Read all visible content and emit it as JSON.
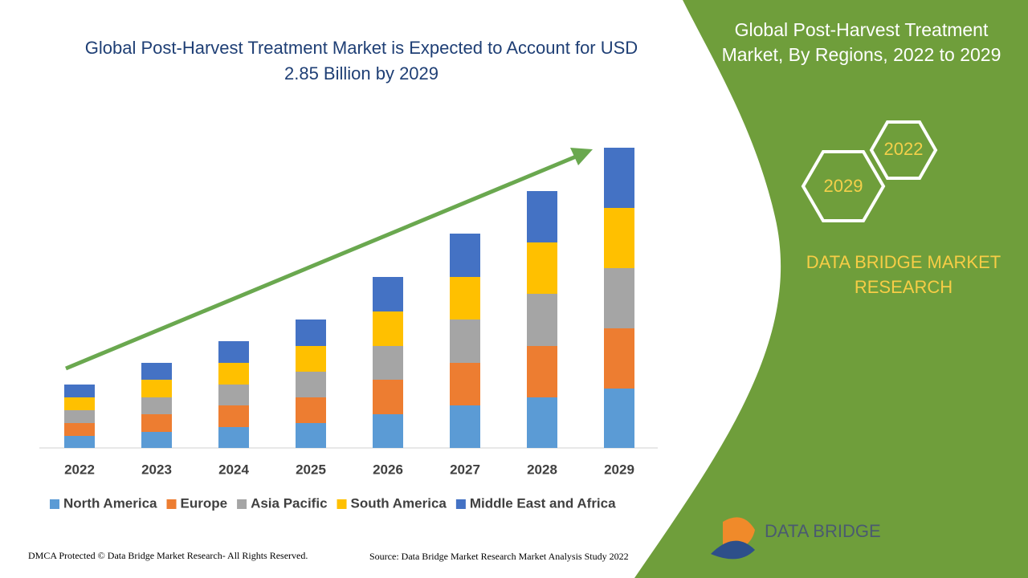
{
  "chart_data": {
    "type": "stacked_bar",
    "title": "Global Post-Harvest Treatment Market is Expected to Account for USD 2.85 Billion by 2029",
    "categories": [
      "2022",
      "2023",
      "2024",
      "2025",
      "2026",
      "2027",
      "2028",
      "2029"
    ],
    "series": [
      {
        "name": "North America",
        "color": "#5b9bd5",
        "values": [
          15,
          20,
          26,
          31,
          42,
          53,
          63,
          74
        ]
      },
      {
        "name": "Europe",
        "color": "#ed7d31",
        "values": [
          16,
          22,
          27,
          32,
          43,
          53,
          64,
          75
        ]
      },
      {
        "name": "Asia Pacific",
        "color": "#a5a5a5",
        "values": [
          16,
          21,
          26,
          32,
          42,
          54,
          65,
          75
        ]
      },
      {
        "name": "South America",
        "color": "#ffc000",
        "values": [
          16,
          22,
          27,
          32,
          43,
          53,
          64,
          75
        ]
      },
      {
        "name": "Middle East and Africa",
        "color": "#4472c4",
        "values": [
          16,
          21,
          27,
          33,
          43,
          54,
          64,
          75
        ]
      }
    ],
    "ylim": [
      0,
      374
    ]
  },
  "panel": {
    "title": "Global Post-Harvest Treatment Market, By Regions, 2022 to 2029",
    "hex_years": [
      "2022",
      "2029"
    ],
    "brand": "DATA BRIDGE MARKET RESEARCH",
    "logo": "DATA BRIDGE"
  },
  "footer": {
    "copyright": "DMCA Protected © Data Bridge Market Research- All Rights Reserved.",
    "source": "Source: Data Bridge Market Research Market Analysis Study 2022"
  }
}
